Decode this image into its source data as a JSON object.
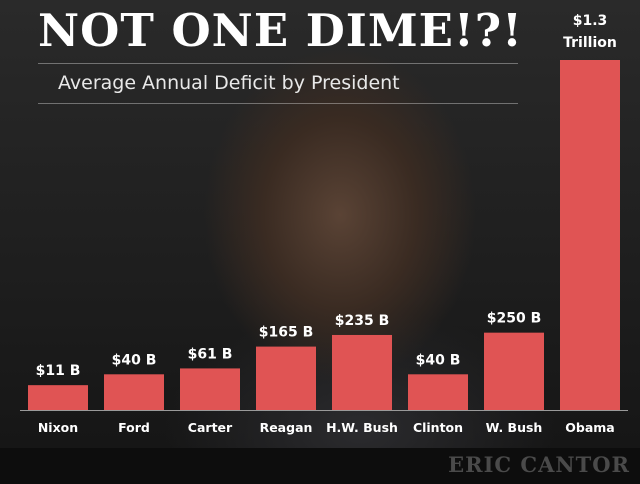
{
  "headline": "NOT ONE DIME!?!",
  "brand": "ERIC CANTOR",
  "colors": {
    "bar": "#e05454",
    "text": "#ffffff",
    "footer": "#0d0d0d",
    "brand": "#4a4a4a"
  },
  "chart_data": {
    "type": "bar",
    "title": "Average Annual Deficit by President",
    "xlabel": "",
    "ylabel": "",
    "unit": "USD billions",
    "grid": false,
    "legend": "none",
    "categories": [
      "Nixon",
      "Ford",
      "Carter",
      "Reagan",
      "H.W. Bush",
      "Clinton",
      "W. Bush",
      "Obama"
    ],
    "values": [
      11,
      40,
      61,
      165,
      235,
      40,
      250,
      1300
    ],
    "value_labels": [
      "$11 B",
      "$40 B",
      "$61 B",
      "$165 B",
      "$235 B",
      "$40 B",
      "$250 B",
      "$1.3 Trillion"
    ],
    "ylim": [
      0,
      1300
    ]
  }
}
